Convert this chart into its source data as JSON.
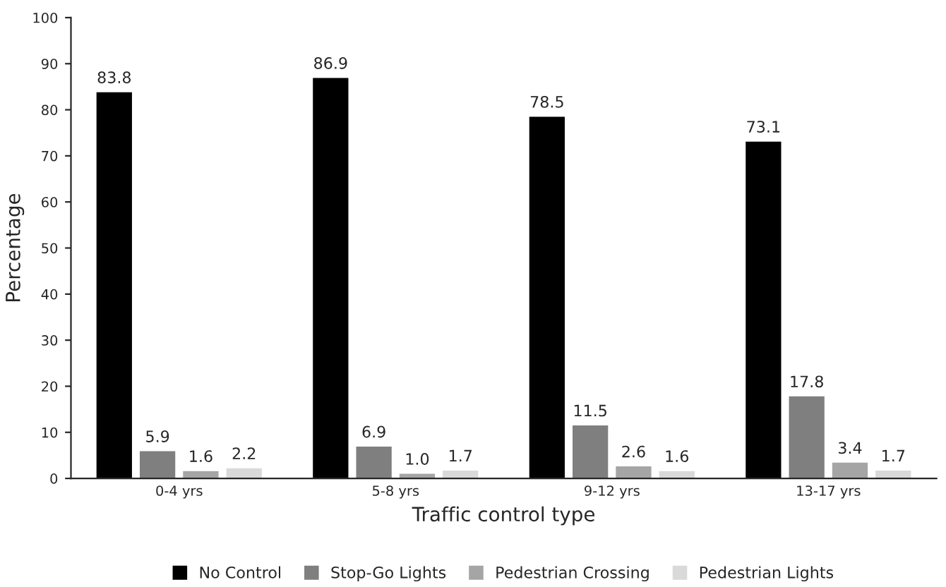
{
  "chart_data": {
    "type": "bar",
    "xlabel": "Traffic control type",
    "ylabel": "Percentage",
    "categories": [
      "0-4 yrs",
      "5-8 yrs",
      "9-12 yrs",
      "13-17 yrs"
    ],
    "series": [
      {
        "name": "No Control",
        "color": "#000000",
        "values": [
          83.8,
          86.9,
          78.5,
          73.1
        ],
        "value_labels": [
          "83.8",
          "86.9",
          "78.5",
          "73.1"
        ]
      },
      {
        "name": "Stop-Go Lights",
        "color": "#7f7f7f",
        "values": [
          5.9,
          6.9,
          11.5,
          17.8
        ],
        "value_labels": [
          "5.9",
          "6.9",
          "11.5",
          "17.8"
        ]
      },
      {
        "name": "Pedestrian Crossing",
        "color": "#a5a5a5",
        "values": [
          1.6,
          1.0,
          2.6,
          3.4
        ],
        "value_labels": [
          "1.6",
          "1.0",
          "2.6",
          "3.4"
        ]
      },
      {
        "name": "Pedestrian Lights",
        "color": "#d9d9d9",
        "values": [
          2.2,
          1.7,
          1.6,
          1.7
        ],
        "value_labels": [
          "2.2",
          "1.7",
          "1.6",
          "1.7"
        ]
      }
    ],
    "ylim": [
      0,
      100
    ],
    "yticks": [
      0,
      10,
      20,
      30,
      40,
      50,
      60,
      70,
      80,
      90,
      100
    ],
    "grid": false,
    "legend": "bottom"
  }
}
